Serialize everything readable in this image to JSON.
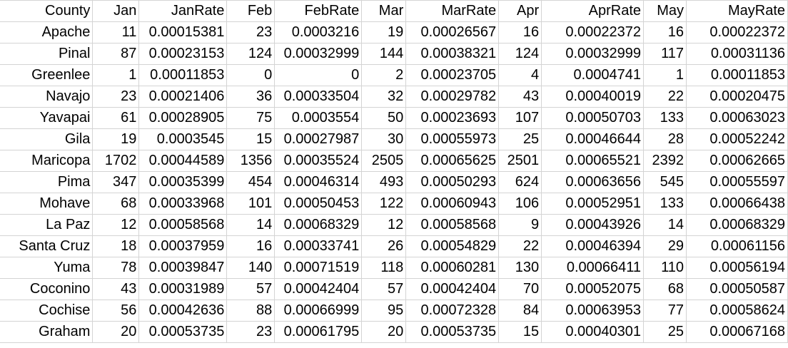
{
  "sheet": {
    "headers": [
      "County",
      "Jan",
      "JanRate",
      "Feb",
      "FebRate",
      "Mar",
      "MarRate",
      "Apr",
      "AprRate",
      "May",
      "MayRate"
    ],
    "rows": [
      [
        "Apache",
        "11",
        "0.00015381",
        "23",
        "0.0003216",
        "19",
        "0.00026567",
        "16",
        "0.00022372",
        "16",
        "0.00022372"
      ],
      [
        "Pinal",
        "87",
        "0.00023153",
        "124",
        "0.00032999",
        "144",
        "0.00038321",
        "124",
        "0.00032999",
        "117",
        "0.00031136"
      ],
      [
        "Greenlee",
        "1",
        "0.00011853",
        "0",
        "0",
        "2",
        "0.00023705",
        "4",
        "0.0004741",
        "1",
        "0.00011853"
      ],
      [
        "Navajo",
        "23",
        "0.00021406",
        "36",
        "0.00033504",
        "32",
        "0.00029782",
        "43",
        "0.00040019",
        "22",
        "0.00020475"
      ],
      [
        "Yavapai",
        "61",
        "0.00028905",
        "75",
        "0.0003554",
        "50",
        "0.00023693",
        "107",
        "0.00050703",
        "133",
        "0.00063023"
      ],
      [
        "Gila",
        "19",
        "0.0003545",
        "15",
        "0.00027987",
        "30",
        "0.00055973",
        "25",
        "0.00046644",
        "28",
        "0.00052242"
      ],
      [
        "Maricopa",
        "1702",
        "0.00044589",
        "1356",
        "0.00035524",
        "2505",
        "0.00065625",
        "2501",
        "0.00065521",
        "2392",
        "0.00062665"
      ],
      [
        "Pima",
        "347",
        "0.00035399",
        "454",
        "0.00046314",
        "493",
        "0.00050293",
        "624",
        "0.00063656",
        "545",
        "0.00055597"
      ],
      [
        "Mohave",
        "68",
        "0.00033968",
        "101",
        "0.00050453",
        "122",
        "0.00060943",
        "106",
        "0.00052951",
        "133",
        "0.00066438"
      ],
      [
        "La Paz",
        "12",
        "0.00058568",
        "14",
        "0.00068329",
        "12",
        "0.00058568",
        "9",
        "0.00043926",
        "14",
        "0.00068329"
      ],
      [
        "Santa Cruz",
        "18",
        "0.00037959",
        "16",
        "0.00033741",
        "26",
        "0.00054829",
        "22",
        "0.00046394",
        "29",
        "0.00061156"
      ],
      [
        "Yuma",
        "78",
        "0.00039847",
        "140",
        "0.00071519",
        "118",
        "0.00060281",
        "130",
        "0.00066411",
        "110",
        "0.00056194"
      ],
      [
        "Coconino",
        "43",
        "0.00031989",
        "57",
        "0.00042404",
        "57",
        "0.00042404",
        "70",
        "0.00052075",
        "68",
        "0.00050587"
      ],
      [
        "Cochise",
        "56",
        "0.00042636",
        "88",
        "0.00066999",
        "95",
        "0.00072328",
        "84",
        "0.00063953",
        "77",
        "0.00058624"
      ],
      [
        "Graham",
        "20",
        "0.00053735",
        "23",
        "0.00061795",
        "20",
        "0.00053735",
        "15",
        "0.00040301",
        "25",
        "0.00067168"
      ]
    ]
  }
}
